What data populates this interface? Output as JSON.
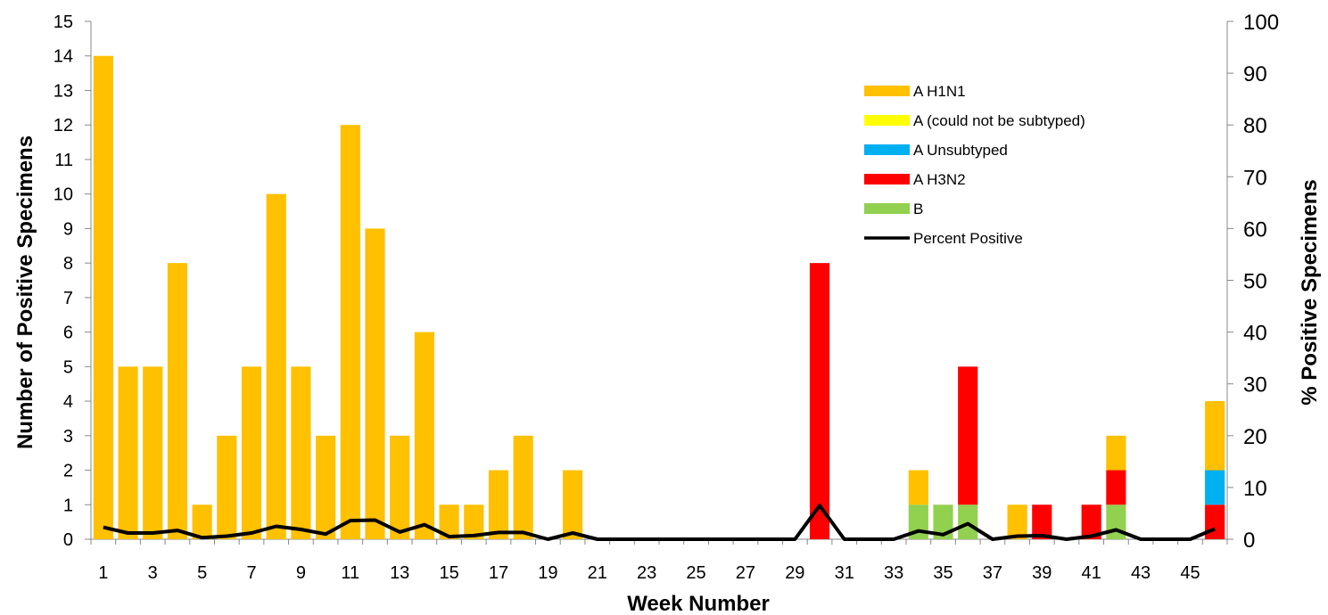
{
  "chart_data": {
    "type": "bar",
    "stacked": true,
    "title": "",
    "xlabel": "Week Number",
    "ylabel": "Number of Positive Specimens",
    "y2label": "% Positive Specimens",
    "ylim": [
      0,
      15
    ],
    "y2lim": [
      0,
      100
    ],
    "yticks": [
      "0",
      "1",
      "2",
      "3",
      "4",
      "5",
      "6",
      "7",
      "8",
      "9",
      "10",
      "11",
      "12",
      "13",
      "14",
      "15"
    ],
    "y2ticks": [
      "0",
      "10",
      "20",
      "30",
      "40",
      "50",
      "60",
      "70",
      "80",
      "90",
      "100"
    ],
    "x": [
      1,
      2,
      3,
      4,
      5,
      6,
      7,
      8,
      9,
      10,
      11,
      12,
      13,
      14,
      15,
      16,
      17,
      18,
      19,
      20,
      21,
      22,
      23,
      24,
      25,
      26,
      27,
      28,
      29,
      30,
      31,
      32,
      33,
      34,
      35,
      36,
      37,
      38,
      39,
      40,
      41,
      42,
      43,
      44,
      45,
      46
    ],
    "xtick_labels": [
      "1",
      "3",
      "5",
      "7",
      "9",
      "11",
      "13",
      "15",
      "17",
      "19",
      "21",
      "23",
      "25",
      "27",
      "29",
      "31",
      "33",
      "35",
      "37",
      "39",
      "41",
      "43",
      "45"
    ],
    "legend_position": "top-right",
    "series": [
      {
        "name": "B",
        "color": "#92D050",
        "axis": "left",
        "kind": "bar",
        "values": [
          0,
          0,
          0,
          0,
          0,
          0,
          0,
          0,
          0,
          0,
          0,
          0,
          0,
          0,
          0,
          0,
          0,
          0,
          0,
          0,
          0,
          0,
          0,
          0,
          0,
          0,
          0,
          0,
          0,
          0,
          0,
          0,
          0,
          1,
          1,
          1,
          0,
          0,
          0,
          0,
          0,
          1,
          0,
          0,
          0,
          0
        ]
      },
      {
        "name": "A H3N2",
        "color": "#FF0000",
        "axis": "left",
        "kind": "bar",
        "values": [
          0,
          0,
          0,
          0,
          0,
          0,
          0,
          0,
          0,
          0,
          0,
          0,
          0,
          0,
          0,
          0,
          0,
          0,
          0,
          0,
          0,
          0,
          0,
          0,
          0,
          0,
          0,
          0,
          0,
          8,
          0,
          0,
          0,
          0,
          0,
          4,
          0,
          0,
          1,
          0,
          1,
          1,
          0,
          0,
          0,
          1
        ]
      },
      {
        "name": "A Unsubtyped",
        "color": "#00B0F0",
        "axis": "left",
        "kind": "bar",
        "values": [
          0,
          0,
          0,
          0,
          0,
          0,
          0,
          0,
          0,
          0,
          0,
          0,
          0,
          0,
          0,
          0,
          0,
          0,
          0,
          0,
          0,
          0,
          0,
          0,
          0,
          0,
          0,
          0,
          0,
          0,
          0,
          0,
          0,
          0,
          0,
          0,
          0,
          0,
          0,
          0,
          0,
          0,
          0,
          0,
          0,
          1
        ]
      },
      {
        "name": "A (could not be subtyped)",
        "color": "#FFFF00",
        "axis": "left",
        "kind": "bar",
        "values": [
          0,
          0,
          0,
          0,
          0,
          0,
          0,
          0,
          0,
          0,
          0,
          0,
          0,
          0,
          0,
          0,
          0,
          0,
          0,
          0,
          0,
          0,
          0,
          0,
          0,
          0,
          0,
          0,
          0,
          0,
          0,
          0,
          0,
          0,
          0,
          0,
          0,
          0,
          0,
          0,
          0,
          0,
          0,
          0,
          0,
          0
        ]
      },
      {
        "name": "A  H1N1",
        "color": "#FFC000",
        "axis": "left",
        "kind": "bar",
        "values": [
          14,
          5,
          5,
          8,
          1,
          3,
          5,
          10,
          5,
          3,
          12,
          9,
          3,
          6,
          1,
          1,
          2,
          3,
          0,
          2,
          0,
          0,
          0,
          0,
          0,
          0,
          0,
          0,
          0,
          0,
          0,
          0,
          0,
          1,
          0,
          0,
          0,
          1,
          0,
          0,
          0,
          1,
          0,
          0,
          0,
          2
        ]
      },
      {
        "name": "Percent Positive",
        "color": "#000000",
        "axis": "right",
        "kind": "line",
        "values": [
          2.3,
          1.2,
          1.2,
          1.7,
          0.3,
          0.6,
          1.2,
          2.5,
          1.9,
          1.0,
          3.6,
          3.7,
          1.4,
          2.8,
          0.5,
          0.7,
          1.3,
          1.3,
          0,
          1.2,
          0,
          0,
          0,
          0,
          0,
          0,
          0,
          0,
          0,
          6.5,
          0,
          0,
          0,
          1.6,
          0.9,
          3.0,
          0,
          0.6,
          0.7,
          0,
          0.6,
          1.8,
          0,
          0,
          0,
          2.0
        ]
      }
    ],
    "legend_order": [
      "A  H1N1",
      "A (could not be subtyped)",
      "A Unsubtyped",
      "A H3N2",
      "B",
      "Percent Positive"
    ]
  }
}
